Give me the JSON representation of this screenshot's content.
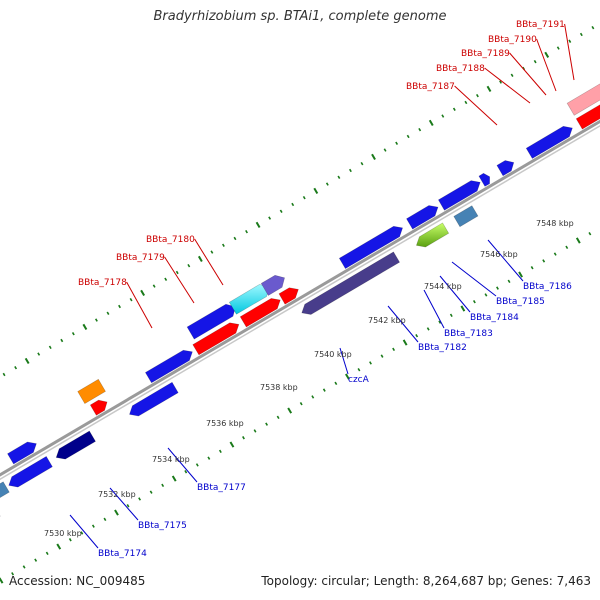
{
  "title": "Bradyrhizobium sp. BTAi1, complete genome",
  "footer": {
    "accession": "Accession: NC_009485",
    "summary": "Topology: circular; Length: 8,264,687 bp; Genes: 7,463"
  },
  "colors": {
    "backbone": "#9a9a9a",
    "tick": "#1a7a1a",
    "forward_label": "#cc0000",
    "reverse_label": "#0000cc"
  },
  "scale_labels": [
    "7530 kbp",
    "7532 kbp",
    "7534 kbp",
    "7536 kbp",
    "7538 kbp",
    "7540 kbp",
    "7542 kbp",
    "7544 kbp",
    "7546 kbp",
    "7548 kbp"
  ],
  "gene_labels": {
    "forward": [
      "BBta_7178",
      "BBta_7179",
      "BBta_7180",
      "BBta_7187",
      "BBta_7188",
      "BBta_7189",
      "BBta_7190",
      "BBta_7191"
    ],
    "reverse": [
      "BBta_7174",
      "BBta_7175",
      "BBta_7177",
      "czcA",
      "BBta_7182",
      "BBta_7183",
      "BBta_7184",
      "BBta_7185",
      "BBta_7186"
    ]
  },
  "features": [
    {
      "color": "#1515e6"
    },
    {
      "color": "#00e5ee"
    },
    {
      "color": "#6a5acd"
    },
    {
      "color": "#ff0000"
    },
    {
      "color": "#ffa0a8"
    },
    {
      "color": "#ff8c00"
    },
    {
      "color": "#4682b4"
    },
    {
      "color": "#7fd71a"
    },
    {
      "color": "#483d8b"
    },
    {
      "color": "#00008b"
    },
    {
      "color": "#666666"
    }
  ]
}
